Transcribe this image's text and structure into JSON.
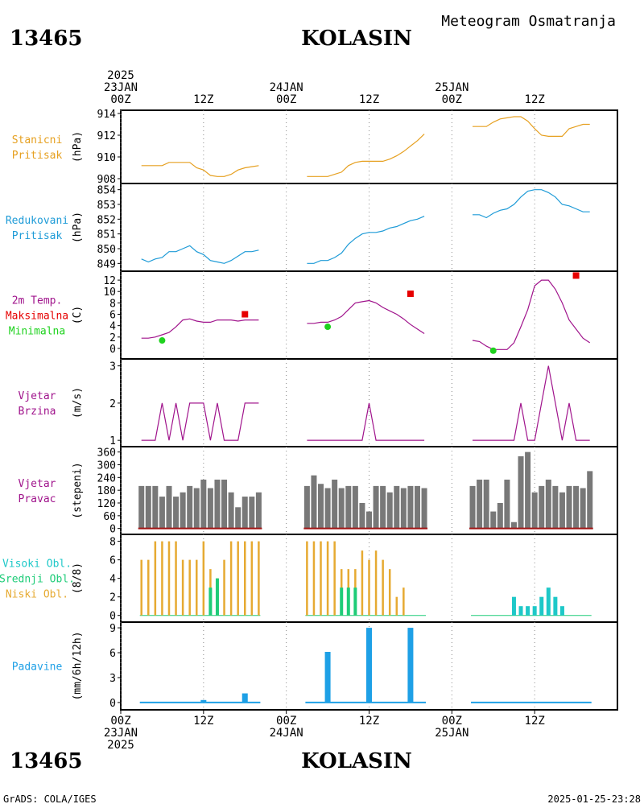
{
  "header": {
    "station_id": "13465",
    "station_name": "KOLASIN",
    "subtitle": "Meteogram Osmatranja"
  },
  "footer": {
    "credit": "GrADS: COLA/IGES",
    "timestamp": "2025-01-25-23:28"
  },
  "time_axis": {
    "top_labels": [
      {
        "hour": 0,
        "lines": [
          "2025",
          "23JAN",
          "00Z"
        ]
      },
      {
        "hour": 12,
        "lines": [
          "12Z"
        ]
      },
      {
        "hour": 24,
        "lines": [
          "24JAN",
          "00Z"
        ]
      },
      {
        "hour": 36,
        "lines": [
          "12Z"
        ]
      },
      {
        "hour": 48,
        "lines": [
          "25JAN",
          "00Z"
        ]
      },
      {
        "hour": 60,
        "lines": [
          "12Z"
        ]
      }
    ],
    "bottom_labels": [
      {
        "hour": 0,
        "lines": [
          "00Z",
          "23JAN",
          "2025"
        ]
      },
      {
        "hour": 12,
        "lines": [
          "12Z"
        ]
      },
      {
        "hour": 24,
        "lines": [
          "00Z",
          "24JAN"
        ]
      },
      {
        "hour": 36,
        "lines": [
          "12Z"
        ]
      },
      {
        "hour": 48,
        "lines": [
          "00Z",
          "25JAN"
        ]
      },
      {
        "hour": 60,
        "lines": [
          "12Z"
        ]
      }
    ]
  },
  "colors": {
    "station_pressure": "#e6a020",
    "reduced_pressure": "#1e9bd7",
    "temperature": "#a0148c",
    "tmax": "#e60000",
    "tmin": "#1ed21e",
    "wind": "#a0148c",
    "wind_dir_bar": "#787878",
    "wind_dir_base": "#a01414",
    "cloud_high": "#1ec8c8",
    "cloud_mid": "#1ecc78",
    "cloud_low": "#e6aa32",
    "precip": "#1ea0e6"
  },
  "chart_data": [
    {
      "type": "line",
      "id": "station_pressure",
      "labels": [
        "Stanicni",
        "Pritisak"
      ],
      "label_color_keys": [
        "station_pressure",
        "station_pressure"
      ],
      "ylabel": "(hPa)",
      "ylim": [
        908,
        914
      ],
      "yticks": [
        908,
        910,
        912,
        914
      ],
      "color_key": "station_pressure",
      "series": [
        {
          "x": [
            3,
            4,
            5,
            6,
            7,
            8,
            9,
            10,
            11,
            12,
            13,
            14,
            15,
            16,
            17,
            18,
            19,
            20
          ],
          "y": [
            909.2,
            909.2,
            909.2,
            909.2,
            909.5,
            909.5,
            909.5,
            909.5,
            909.0,
            908.8,
            908.3,
            908.2,
            908.2,
            908.4,
            908.8,
            909.0,
            909.1,
            909.2
          ]
        },
        {
          "x": [
            27,
            28,
            29,
            30,
            31,
            32,
            33,
            34,
            35,
            36,
            37,
            38,
            39,
            40,
            41,
            42,
            43,
            44
          ],
          "y": [
            908.2,
            908.2,
            908.2,
            908.2,
            908.4,
            908.6,
            909.2,
            909.5,
            909.6,
            909.6,
            909.6,
            909.6,
            909.8,
            910.1,
            910.5,
            911.0,
            911.5,
            912.1
          ]
        },
        {
          "x": [
            51,
            52,
            53,
            54,
            55,
            56,
            57,
            58,
            59,
            60,
            61,
            62,
            63,
            64,
            65,
            66,
            67,
            68
          ],
          "y": [
            912.8,
            912.8,
            912.8,
            913.2,
            913.5,
            913.6,
            913.7,
            913.7,
            913.3,
            912.6,
            912.0,
            911.9,
            911.9,
            911.9,
            912.6,
            912.8,
            913.0,
            913.0
          ]
        }
      ]
    },
    {
      "type": "line",
      "id": "reduced_pressure",
      "labels": [
        "Redukovani",
        "Pritisak"
      ],
      "label_color_keys": [
        "reduced_pressure",
        "reduced_pressure"
      ],
      "ylabel": "(hPa)",
      "ylim": [
        848.8,
        854.2
      ],
      "yticks": [
        849,
        850,
        851,
        852,
        853,
        854
      ],
      "color_key": "reduced_pressure",
      "series": [
        {
          "x": [
            3,
            4,
            5,
            6,
            7,
            8,
            9,
            10,
            11,
            12,
            13,
            14,
            15,
            16,
            17,
            18,
            19,
            20
          ],
          "y": [
            849.3,
            849.1,
            849.3,
            849.4,
            849.8,
            849.8,
            850.0,
            850.2,
            849.8,
            849.6,
            849.2,
            849.1,
            849.0,
            849.2,
            849.5,
            849.8,
            849.8,
            849.9
          ]
        },
        {
          "x": [
            27,
            28,
            29,
            30,
            31,
            32,
            33,
            34,
            35,
            36,
            37,
            38,
            39,
            40,
            41,
            42,
            43,
            44
          ],
          "y": [
            849.0,
            849.0,
            849.2,
            849.2,
            849.4,
            849.7,
            850.3,
            850.7,
            851.0,
            851.1,
            851.1,
            851.2,
            851.4,
            851.5,
            851.7,
            851.9,
            852.0,
            852.2
          ]
        },
        {
          "x": [
            51,
            52,
            53,
            54,
            55,
            56,
            57,
            58,
            59,
            60,
            61,
            62,
            63,
            64,
            65,
            66,
            67,
            68
          ],
          "y": [
            852.3,
            852.3,
            852.1,
            852.4,
            852.6,
            852.7,
            853.0,
            853.5,
            853.9,
            854.0,
            854.0,
            853.8,
            853.5,
            853.0,
            852.9,
            852.7,
            852.5,
            852.5
          ]
        }
      ]
    },
    {
      "type": "line",
      "id": "temperature",
      "labels": [
        "2m Temp.",
        "Maksimalna",
        "Minimalna"
      ],
      "label_color_keys": [
        "temperature",
        "tmax",
        "tmin"
      ],
      "ylabel": "(C)",
      "ylim": [
        -1,
        13
      ],
      "yticks": [
        0,
        2,
        4,
        6,
        8,
        10,
        12
      ],
      "color_key": "temperature",
      "series": [
        {
          "x": [
            3,
            4,
            5,
            6,
            7,
            8,
            9,
            10,
            11,
            12,
            13,
            14,
            15,
            16,
            17,
            18,
            19,
            20
          ],
          "y": [
            1.8,
            1.8,
            2.0,
            2.4,
            2.8,
            3.8,
            5.0,
            5.2,
            4.8,
            4.6,
            4.6,
            5.0,
            5.0,
            5.0,
            4.8,
            5.0,
            5.0,
            5.0
          ]
        },
        {
          "x": [
            27,
            28,
            29,
            30,
            31,
            32,
            33,
            34,
            35,
            36,
            37,
            38,
            39,
            40,
            41,
            42,
            43,
            44
          ],
          "y": [
            4.4,
            4.4,
            4.6,
            4.6,
            5.0,
            5.6,
            6.8,
            8.0,
            8.2,
            8.4,
            8.0,
            7.2,
            6.6,
            6.0,
            5.2,
            4.2,
            3.4,
            2.6
          ]
        },
        {
          "x": [
            51,
            52,
            53,
            54,
            55,
            56,
            57,
            58,
            59,
            60,
            61,
            62,
            63,
            64,
            65,
            66,
            67,
            68
          ],
          "y": [
            1.4,
            1.2,
            0.4,
            -0.2,
            -0.2,
            -0.2,
            1.0,
            3.8,
            6.8,
            11.0,
            12.0,
            12.0,
            10.4,
            8.0,
            5.0,
            3.4,
            1.8,
            1.0
          ]
        }
      ],
      "tmax": [
        {
          "x": 18,
          "y": 6.0
        },
        {
          "x": 42,
          "y": 9.6
        },
        {
          "x": 66,
          "y": 12.8
        }
      ],
      "tmin": [
        {
          "x": 6,
          "y": 1.4
        },
        {
          "x": 30,
          "y": 3.8
        },
        {
          "x": 54,
          "y": -0.4
        }
      ]
    },
    {
      "type": "line",
      "id": "wind_speed",
      "labels": [
        "Vjetar",
        "Brzina"
      ],
      "label_color_keys": [
        "wind",
        "wind"
      ],
      "ylabel": "(m/s)",
      "ylim": [
        0.96,
        3.1
      ],
      "yticks": [
        1,
        2,
        3
      ],
      "color_key": "wind",
      "series": [
        {
          "x": [
            3,
            4,
            5,
            6,
            7,
            8,
            9,
            10,
            11,
            12,
            13,
            14,
            15,
            16,
            17,
            18,
            19,
            20
          ],
          "y": [
            1,
            1,
            1,
            2,
            1,
            2,
            1,
            2,
            2,
            2,
            1,
            2,
            1,
            1,
            1,
            2,
            2,
            2
          ]
        },
        {
          "x": [
            27,
            28,
            29,
            30,
            31,
            32,
            33,
            34,
            35,
            36,
            37,
            38,
            39,
            40,
            41,
            42,
            43,
            44
          ],
          "y": [
            1,
            1,
            1,
            1,
            1,
            1,
            1,
            1,
            1,
            2,
            1,
            1,
            1,
            1,
            1,
            1,
            1,
            1
          ]
        },
        {
          "x": [
            51,
            52,
            53,
            54,
            55,
            56,
            57,
            58,
            59,
            60,
            61,
            62,
            63,
            64,
            65,
            66,
            67,
            68
          ],
          "y": [
            1,
            1,
            1,
            1,
            1,
            1,
            1,
            2,
            1,
            1,
            2,
            3,
            2,
            1,
            2,
            1,
            1,
            1
          ]
        }
      ]
    },
    {
      "type": "bar",
      "id": "wind_direction",
      "labels": [
        "Vjetar",
        "Pravac"
      ],
      "label_color_keys": [
        "wind",
        "wind"
      ],
      "ylabel": "(stepeni)",
      "ylim": [
        -5,
        370
      ],
      "yticks": [
        0,
        60,
        120,
        180,
        240,
        300,
        360
      ],
      "color_key": "wind_dir_bar",
      "bars": [
        {
          "x": [
            3,
            4,
            5,
            6,
            7,
            8,
            9,
            10,
            11,
            12,
            13,
            14,
            15,
            16,
            17,
            18,
            19,
            20
          ],
          "values": [
            200,
            200,
            200,
            150,
            200,
            150,
            170,
            200,
            190,
            230,
            190,
            230,
            230,
            170,
            100,
            150,
            150,
            170
          ]
        },
        {
          "x": [
            27,
            28,
            29,
            30,
            31,
            32,
            33,
            34,
            35,
            36,
            37,
            38,
            39,
            40,
            41,
            42,
            43,
            44
          ],
          "values": [
            200,
            250,
            210,
            190,
            230,
            190,
            200,
            200,
            120,
            80,
            200,
            200,
            170,
            200,
            190,
            200,
            200,
            190
          ]
        },
        {
          "x": [
            51,
            52,
            53,
            54,
            55,
            56,
            57,
            58,
            59,
            60,
            61,
            62,
            63,
            64,
            65,
            66,
            67,
            68
          ],
          "values": [
            200,
            230,
            230,
            80,
            120,
            230,
            30,
            340,
            360,
            170,
            200,
            230,
            200,
            170,
            200,
            200,
            190,
            270
          ]
        }
      ]
    },
    {
      "type": "bar",
      "id": "clouds",
      "labels": [
        "Visoki Obl.",
        "Srednji Obl.",
        "Niski Obl."
      ],
      "label_color_keys": [
        "cloud_high",
        "cloud_mid",
        "cloud_low"
      ],
      "ylabel": "(8/8)",
      "ylim": [
        -0.2,
        8.4
      ],
      "yticks": [
        0,
        2,
        4,
        6,
        8
      ],
      "low": {
        "x": [
          3,
          4,
          5,
          6,
          7,
          8,
          9,
          10,
          11,
          12,
          13,
          14,
          15,
          16,
          17,
          18,
          19,
          20,
          27,
          28,
          29,
          30,
          31,
          32,
          33,
          34,
          35,
          36,
          37,
          38,
          39,
          40,
          41,
          42
        ],
        "values": [
          6,
          6,
          8,
          8,
          8,
          8,
          6,
          6,
          6,
          8,
          5,
          4,
          6,
          8,
          8,
          8,
          8,
          8,
          8,
          8,
          8,
          8,
          8,
          5,
          5,
          5,
          7,
          6,
          7,
          6,
          5,
          2,
          3,
          0
        ]
      },
      "mid": {
        "x": [
          13,
          14,
          32,
          33,
          34
        ],
        "values": [
          3,
          4,
          3,
          3,
          3
        ]
      },
      "high": {
        "x": [
          57,
          58,
          59,
          60,
          61,
          62,
          63,
          64
        ],
        "values": [
          2,
          1,
          1,
          1,
          2,
          3,
          2,
          1
        ]
      }
    },
    {
      "type": "bar",
      "id": "precipitation",
      "labels": [
        "Padavine"
      ],
      "label_color_keys": [
        "precip"
      ],
      "ylabel": "(mm/6h/12h)",
      "ylim": [
        -0.3,
        9.3
      ],
      "yticks": [
        0,
        3,
        6,
        9
      ],
      "color_key": "precip",
      "bars": [
        {
          "x": [
            12,
            18,
            30,
            36,
            42
          ],
          "values": [
            0.3,
            1.1,
            6.1,
            9.0,
            9.0
          ]
        }
      ]
    }
  ]
}
